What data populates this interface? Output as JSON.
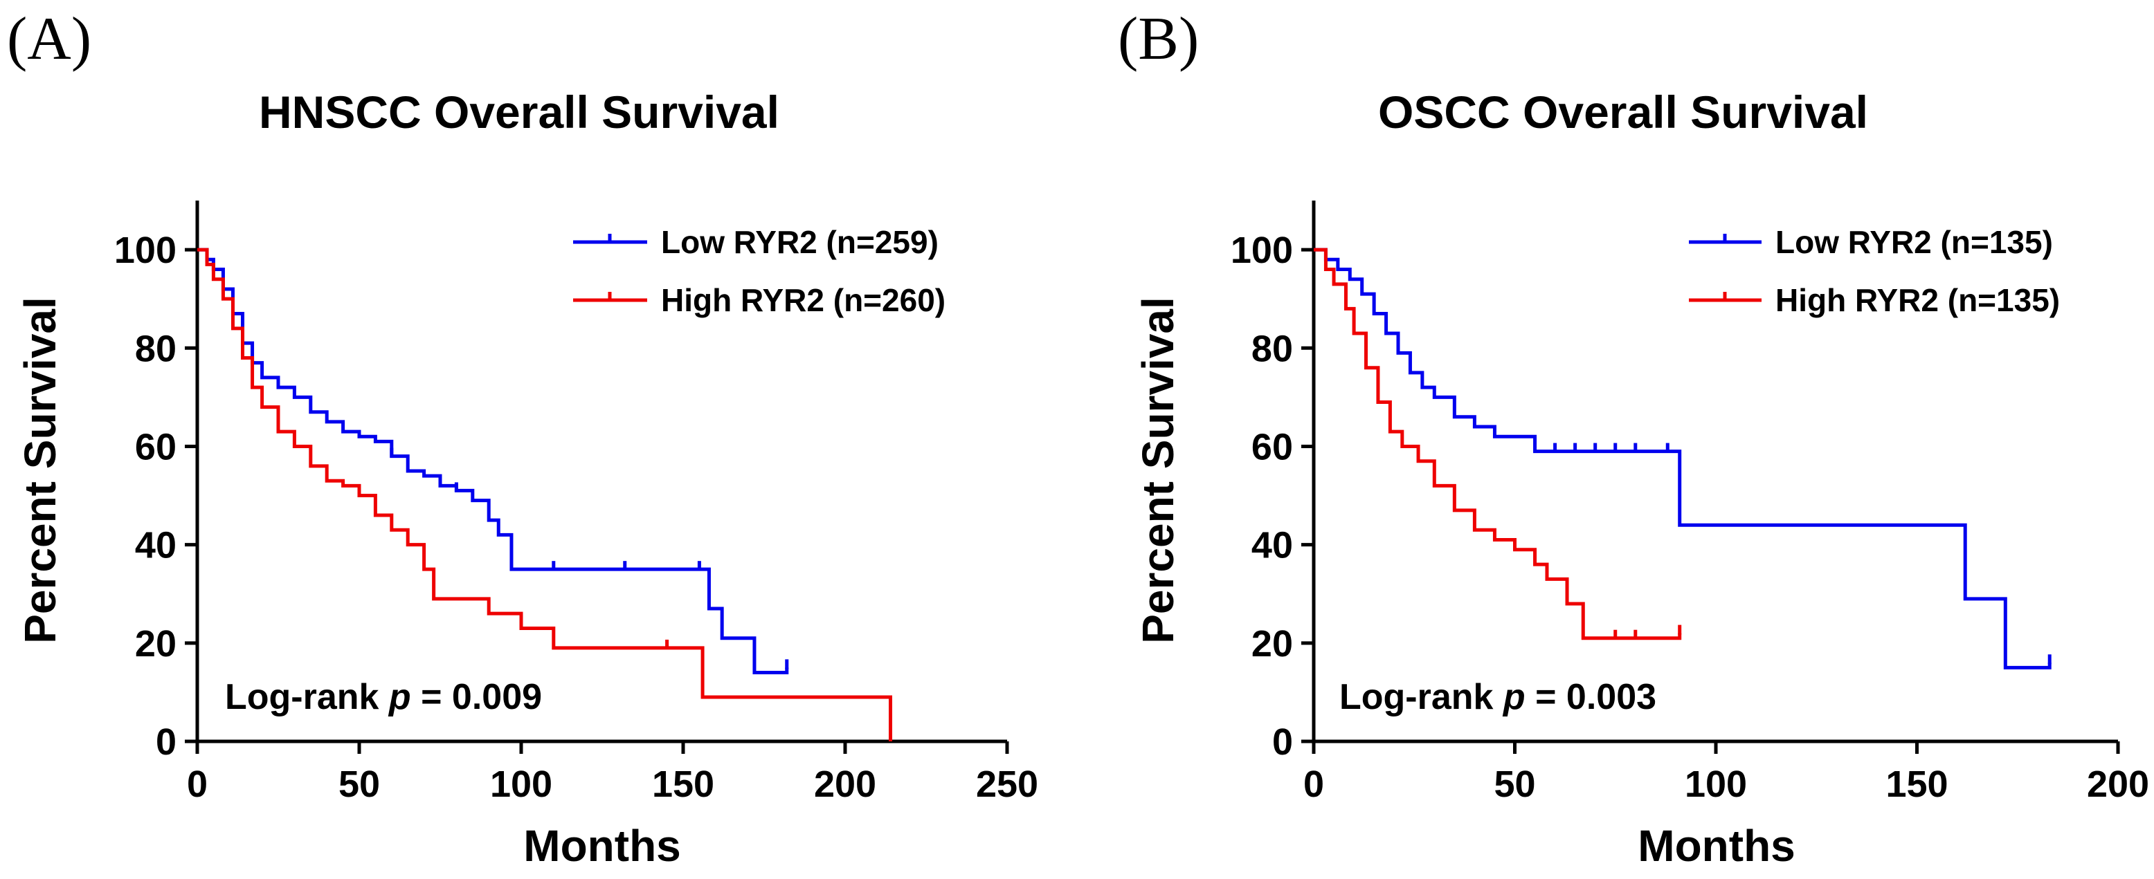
{
  "chart_data": [
    {
      "type": "line",
      "panel_label": "(A)",
      "title": "HNSCC Overall Survival",
      "xlabel": "Months",
      "ylabel": "Percent Survival",
      "xlim": [
        0,
        250
      ],
      "ylim": [
        0,
        110
      ],
      "xticks": [
        "0",
        "50",
        "100",
        "150",
        "200",
        "250"
      ],
      "yticks": [
        "0",
        "20",
        "40",
        "60",
        "80",
        "100"
      ],
      "xtick_values": [
        0,
        50,
        100,
        150,
        200,
        250
      ],
      "ytick_values": [
        0,
        20,
        40,
        60,
        80,
        100
      ],
      "legend_position": "top-right",
      "annotation": {
        "prefix": "Log-rank ",
        "p": "p",
        "suffix": " = 0.009"
      },
      "series": [
        {
          "name": "Low RYR2 (n=259)",
          "color": "#0000ee",
          "x": [
            0,
            3,
            5,
            8,
            11,
            14,
            17,
            20,
            25,
            30,
            35,
            40,
            45,
            50,
            55,
            60,
            65,
            70,
            75,
            80,
            85,
            90,
            93,
            97,
            110,
            130,
            150,
            158,
            162,
            172,
            178,
            182
          ],
          "y": [
            100,
            98,
            96,
            92,
            87,
            81,
            77,
            74,
            72,
            70,
            67,
            65,
            63,
            62,
            61,
            58,
            55,
            54,
            52,
            51,
            49,
            45,
            42,
            35,
            35,
            35,
            35,
            27,
            21,
            14,
            14,
            15
          ],
          "censor_x": [
            60,
            80,
            110,
            132,
            155,
            182
          ],
          "censor_y": [
            58,
            51,
            35,
            35,
            35,
            15
          ]
        },
        {
          "name": "High RYR2 (n=260)",
          "color": "#ee0000",
          "x": [
            0,
            3,
            5,
            8,
            11,
            14,
            17,
            20,
            25,
            30,
            35,
            40,
            45,
            50,
            55,
            60,
            65,
            70,
            73,
            80,
            90,
            100,
            110,
            120,
            150,
            156,
            200,
            214,
            214
          ],
          "y": [
            100,
            97,
            94,
            90,
            84,
            78,
            72,
            68,
            63,
            60,
            56,
            53,
            52,
            50,
            46,
            43,
            40,
            35,
            29,
            29,
            26,
            23,
            19,
            19,
            19,
            9,
            9,
            9,
            0
          ],
          "censor_x": [
            145
          ],
          "censor_y": [
            19
          ]
        }
      ]
    },
    {
      "type": "line",
      "panel_label": "(B)",
      "title": "OSCC Overall Survival",
      "xlabel": "Months",
      "ylabel": "Percent Survival",
      "xlim": [
        0,
        200
      ],
      "ylim": [
        0,
        110
      ],
      "xticks": [
        "0",
        "50",
        "100",
        "150",
        "200"
      ],
      "yticks": [
        "0",
        "20",
        "40",
        "60",
        "80",
        "100"
      ],
      "xtick_values": [
        0,
        50,
        100,
        150,
        200
      ],
      "ytick_values": [
        0,
        20,
        40,
        60,
        80,
        100
      ],
      "legend_position": "top-right",
      "annotation": {
        "prefix": "Log-rank ",
        "p": "p",
        "suffix": " = 0.003"
      },
      "series": [
        {
          "name": "Low RYR2 (n=135)",
          "color": "#0000ee",
          "x": [
            0,
            3,
            6,
            9,
            12,
            15,
            18,
            21,
            24,
            27,
            30,
            35,
            40,
            45,
            50,
            55,
            60,
            70,
            80,
            91,
            91,
            150,
            162,
            162,
            172,
            172,
            182,
            183
          ],
          "y": [
            100,
            98,
            96,
            94,
            91,
            87,
            83,
            79,
            75,
            72,
            70,
            66,
            64,
            62,
            62,
            59,
            59,
            59,
            59,
            59,
            44,
            44,
            44,
            29,
            29,
            15,
            15,
            16
          ],
          "censor_x": [
            60,
            65,
            70,
            75,
            80,
            88,
            183
          ],
          "censor_y": [
            59,
            59,
            59,
            59,
            59,
            59,
            16
          ]
        },
        {
          "name": "High RYR2 (n=135)",
          "color": "#ee0000",
          "x": [
            0,
            3,
            5,
            8,
            10,
            13,
            16,
            19,
            22,
            26,
            30,
            35,
            40,
            45,
            50,
            55,
            58,
            63,
            67,
            67,
            85,
            91
          ],
          "y": [
            100,
            96,
            93,
            88,
            83,
            76,
            69,
            63,
            60,
            57,
            52,
            47,
            43,
            41,
            39,
            36,
            33,
            28,
            28,
            21,
            21,
            22
          ],
          "censor_x": [
            75,
            80,
            91
          ],
          "censor_y": [
            21,
            21,
            22
          ]
        }
      ]
    }
  ]
}
